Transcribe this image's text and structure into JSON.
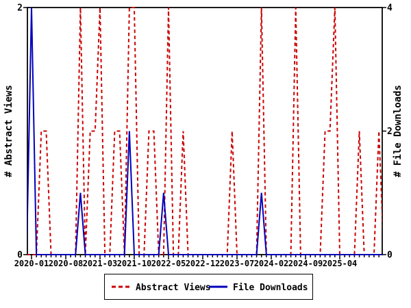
{
  "chart_data": {
    "type": "line",
    "title": "",
    "x_unit": "month",
    "x_months_start": "2020-01",
    "x_months_end": "2025-12",
    "x_tick_labels": [
      "2020-01",
      "2020-08",
      "2021-03",
      "2021-10",
      "2022-05",
      "2022-12",
      "2023-07",
      "2024-02",
      "2024-09",
      "2025-04"
    ],
    "x_major_tick_every_months": 7,
    "x_minor_tick_every_months": 1,
    "left_axis": {
      "label": "# Abstract Views",
      "range": [
        0,
        2
      ],
      "tick_values": [
        0,
        2
      ]
    },
    "right_axis": {
      "label": "# File Downloads",
      "range": [
        0,
        4
      ],
      "tick_values": [
        0,
        2,
        4
      ]
    },
    "grid": false,
    "legend_position": "bottom-center",
    "series": [
      {
        "name": "Abstract Views",
        "axis": "left",
        "color": "#cc0000",
        "line_style": "dashed",
        "values": [
          0,
          0,
          1,
          1,
          0,
          0,
          0,
          0,
          0,
          0,
          2,
          0,
          1,
          1,
          2,
          0,
          0,
          1,
          1,
          0,
          2,
          2,
          0,
          0,
          1,
          1,
          0,
          0,
          2,
          0,
          0,
          1,
          0,
          0,
          0,
          0,
          0,
          0,
          0,
          0,
          0,
          1,
          0,
          0,
          0,
          0,
          0,
          2,
          0,
          0,
          0,
          0,
          0,
          0,
          2,
          0,
          0,
          0,
          0,
          0,
          1,
          1,
          2,
          0,
          0,
          0,
          0,
          1,
          0,
          0,
          0,
          1
        ]
      },
      {
        "name": "File Downloads",
        "axis": "right",
        "color": "#0000bb",
        "line_style": "solid",
        "values": [
          4,
          0,
          0,
          0,
          0,
          0,
          0,
          0,
          0,
          0,
          1,
          0,
          0,
          0,
          0,
          0,
          0,
          0,
          0,
          0,
          2,
          0,
          0,
          0,
          0,
          0,
          0,
          1,
          0,
          0,
          0,
          0,
          0,
          0,
          0,
          0,
          0,
          0,
          0,
          0,
          0,
          0,
          0,
          0,
          0,
          0,
          0,
          1,
          0,
          0,
          0,
          0,
          0,
          0,
          0,
          0,
          0,
          0,
          0,
          0,
          0,
          0,
          0,
          0,
          0,
          0,
          0,
          0,
          0,
          0,
          0,
          0
        ]
      }
    ]
  },
  "legend": {
    "items": [
      {
        "label": "Abstract Views",
        "color": "#cc0000",
        "style": "dashed"
      },
      {
        "label": "File Downloads",
        "color": "#0000bb",
        "style": "solid"
      }
    ]
  },
  "colors": {
    "abstract_views": "#cc0000",
    "file_downloads": "#0000bb",
    "frame": "#000000",
    "background": "#ffffff"
  }
}
